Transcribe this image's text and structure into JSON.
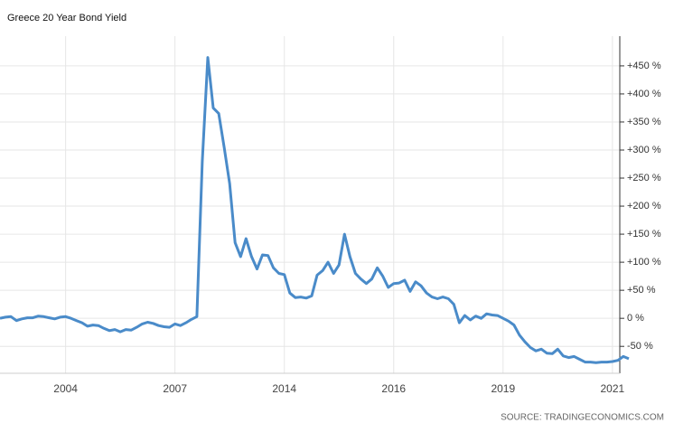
{
  "chart_data": {
    "type": "line",
    "title": "Greece 20 Year Bond Yield",
    "source": "SOURCE: TRADINGECONOMICS.COM",
    "categories": [
      null,
      null,
      null,
      null,
      null,
      null,
      null,
      null,
      null,
      null,
      null,
      null,
      "2004",
      null,
      null,
      null,
      null,
      null,
      null,
      null,
      null,
      null,
      null,
      null,
      null,
      null,
      null,
      null,
      null,
      null,
      null,
      null,
      "2007",
      null,
      null,
      null,
      null,
      null,
      null,
      null,
      null,
      null,
      null,
      null,
      null,
      null,
      null,
      null,
      null,
      null,
      null,
      null,
      "2014",
      null,
      null,
      null,
      null,
      null,
      null,
      null,
      null,
      null,
      null,
      null,
      null,
      null,
      null,
      null,
      null,
      null,
      null,
      null,
      "2016",
      null,
      null,
      null,
      null,
      null,
      null,
      null,
      null,
      null,
      null,
      null,
      null,
      null,
      null,
      null,
      null,
      null,
      null,
      null,
      "2019",
      null,
      null,
      null,
      null,
      null,
      null,
      null,
      null,
      null,
      null,
      null,
      null,
      null,
      null,
      null,
      null,
      null,
      null,
      null,
      "2021",
      null,
      null,
      null
    ],
    "series": [
      {
        "name": "Greece 20 Year Bond Yield",
        "color": "#4a8bc9",
        "values": [
          0,
          2,
          3,
          -4,
          -1,
          1,
          1,
          4,
          3,
          1,
          -1,
          2,
          3,
          0,
          -4,
          -8,
          -14,
          -12,
          -13,
          -18,
          -22,
          -20,
          -24,
          -20,
          -21,
          -16,
          -10,
          -7,
          -9,
          -13,
          -15,
          -16,
          -10,
          -13,
          -8,
          -2,
          3,
          280,
          465,
          375,
          365,
          305,
          240,
          135,
          110,
          142,
          110,
          88,
          113,
          112,
          90,
          80,
          78,
          45,
          37,
          38,
          36,
          40,
          77,
          85,
          100,
          80,
          95,
          150,
          110,
          80,
          70,
          62,
          70,
          90,
          75,
          55,
          62,
          63,
          68,
          48,
          65,
          58,
          45,
          38,
          35,
          38,
          35,
          25,
          -8,
          5,
          -3,
          4,
          0,
          8,
          6,
          5,
          0,
          -5,
          -12,
          -30,
          -42,
          -52,
          -58,
          -55,
          -62,
          -63,
          -55,
          -67,
          -70,
          -68,
          -73,
          -78,
          -78,
          -79,
          -78,
          -78,
          -77,
          -75,
          -68,
          -72
        ]
      }
    ],
    "ylim": [
      -98,
      503
    ],
    "yticks": [
      {
        "value": -50,
        "label": "-50 %"
      },
      {
        "value": 0,
        "label": "0 %"
      },
      {
        "value": 50,
        "label": "+50 %"
      },
      {
        "value": 100,
        "label": "+100 %"
      },
      {
        "value": 150,
        "label": "+150 %"
      },
      {
        "value": 200,
        "label": "+200 %"
      },
      {
        "value": 250,
        "label": "+250 %"
      },
      {
        "value": 300,
        "label": "+300 %"
      },
      {
        "value": 350,
        "label": "+350 %"
      },
      {
        "value": 400,
        "label": "+400 %"
      },
      {
        "value": 450,
        "label": "+450 %"
      }
    ],
    "grid": true
  }
}
